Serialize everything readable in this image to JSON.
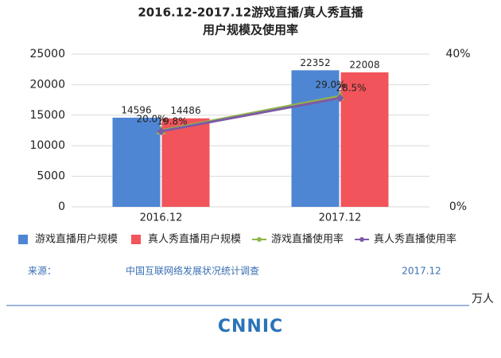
{
  "chart_data": {
    "type": "bar",
    "title": "2016.12-2017.12游戏直播/真人秀直播",
    "subtitle": "用户规模及使用率",
    "categories": [
      "2016.12",
      "2017.12"
    ],
    "series": [
      {
        "name": "游戏直播用户规模",
        "color": "#4f86d4",
        "values": [
          14596,
          22352
        ]
      },
      {
        "name": "真人秀直播用户规模",
        "color": "#f2545b",
        "values": [
          14486,
          22008
        ]
      },
      {
        "name": "游戏直播使用率",
        "color": "#8fb548",
        "axis": "y2",
        "type": "line",
        "values": [
          20.0,
          29.0
        ],
        "value_labels": [
          "20.0%",
          "29.0%"
        ]
      },
      {
        "name": "真人秀直播使用率",
        "color": "#7d5aa6",
        "axis": "y2",
        "type": "line",
        "values": [
          19.8,
          28.5
        ],
        "value_labels": [
          "19.8%",
          "28.5%"
        ]
      }
    ],
    "ylim": [
      0,
      25000
    ],
    "yticks": [
      0,
      5000,
      10000,
      15000,
      20000,
      25000
    ],
    "y2lim": [
      0,
      40
    ],
    "y2ticks": [
      {
        "value": 0,
        "label": "0%"
      },
      {
        "value": 40,
        "label": "40%"
      }
    ],
    "grid": true,
    "source_label": "来源：",
    "source": "中国互联网络发展状况统计调查",
    "date": "2017.12",
    "unit": "万人",
    "logo": "CNNIC"
  }
}
